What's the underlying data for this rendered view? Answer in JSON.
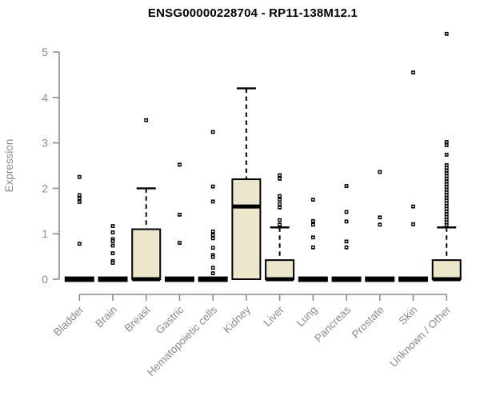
{
  "figure": {
    "title": "ENSG00000228704 - RP11-138M12.1"
  },
  "chart_data": {
    "type": "boxplot",
    "title": "ENSG00000228704 - RP11-138M12.1",
    "xlabel": "",
    "ylabel": "Expression",
    "ylim": [
      0,
      5
    ],
    "yticks": [
      0,
      1,
      2,
      3,
      4,
      5
    ],
    "grid": false,
    "legend": null,
    "categories": [
      "Bladder",
      "Brain",
      "Breast",
      "Gastric",
      "Hematopoietic cells",
      "Kidney",
      "Liver",
      "Lung",
      "Pancreas",
      "Prostate",
      "Skin",
      "Unknown / Other"
    ],
    "series": [
      {
        "name": "Bladder",
        "q1": 0,
        "median": 0,
        "q3": 0,
        "whisker_low": 0,
        "whisker_high": 0,
        "outliers": [
          2.25,
          1.85,
          1.78,
          1.7,
          0.78
        ]
      },
      {
        "name": "Brain",
        "q1": 0,
        "median": 0,
        "q3": 0,
        "whisker_low": 0,
        "whisker_high": 0,
        "outliers": [
          1.17,
          1.03,
          0.88,
          0.84,
          0.74,
          0.57,
          0.4,
          0.36
        ]
      },
      {
        "name": "Breast",
        "q1": 0,
        "median": 0,
        "q3": 1.1,
        "whisker_low": 0,
        "whisker_high": 2.0,
        "outliers": [
          3.5
        ]
      },
      {
        "name": "Gastric",
        "q1": 0,
        "median": 0,
        "q3": 0,
        "whisker_low": 0,
        "whisker_high": 0,
        "outliers": [
          2.52,
          1.42,
          0.8
        ]
      },
      {
        "name": "Hematopoietic cells",
        "q1": 0,
        "median": 0,
        "q3": 0,
        "whisker_low": 0,
        "whisker_high": 0,
        "outliers": [
          3.24,
          2.04,
          1.71,
          1.05,
          0.97,
          0.9,
          0.69,
          0.53,
          0.49,
          0.25,
          0.13
        ]
      },
      {
        "name": "Kidney",
        "q1": 0,
        "median": 1.6,
        "q3": 2.2,
        "whisker_low": 0,
        "whisker_high": 4.2,
        "outliers": []
      },
      {
        "name": "Liver",
        "q1": 0,
        "median": 0,
        "q3": 0.42,
        "whisker_low": 0,
        "whisker_high": 1.14,
        "outliers": [
          2.29,
          2.21,
          1.83,
          1.75,
          1.65,
          1.58,
          1.3,
          1.2
        ]
      },
      {
        "name": "Lung",
        "q1": 0,
        "median": 0,
        "q3": 0,
        "whisker_low": 0,
        "whisker_high": 0,
        "outliers": [
          1.75,
          1.28,
          1.2,
          0.92,
          0.7
        ]
      },
      {
        "name": "Pancreas",
        "q1": 0,
        "median": 0,
        "q3": 0,
        "whisker_low": 0,
        "whisker_high": 0,
        "outliers": [
          2.05,
          1.48,
          1.27,
          0.83,
          0.7
        ]
      },
      {
        "name": "Prostate",
        "q1": 0,
        "median": 0,
        "q3": 0,
        "whisker_low": 0,
        "whisker_high": 0,
        "outliers": [
          2.36,
          1.36,
          1.2
        ]
      },
      {
        "name": "Skin",
        "q1": 0,
        "median": 0,
        "q3": 0,
        "whisker_low": 0,
        "whisker_high": 0,
        "outliers": [
          4.55,
          1.6,
          1.21
        ]
      },
      {
        "name": "Unknown / Other",
        "q1": 0,
        "median": 0,
        "q3": 0.42,
        "whisker_low": 0,
        "whisker_high": 1.14,
        "outliers": [
          5.4,
          3.02,
          2.95,
          2.74,
          2.51,
          2.45,
          2.39,
          2.33,
          2.27,
          2.21,
          2.15,
          2.09,
          2.03,
          1.97,
          1.91,
          1.85,
          1.79,
          1.73,
          1.67,
          1.61,
          1.55,
          1.49,
          1.43,
          1.37,
          1.31,
          1.25,
          1.19
        ]
      }
    ],
    "colors": {
      "box_fill": "#ece6cc",
      "box_border": "#000000",
      "median": "#000000",
      "whisker": "#000000",
      "outlier": "#000000",
      "axis": "#8c8c8c",
      "tick_label": "#8c8c8c",
      "title": "#000000",
      "background": "#ffffff"
    }
  }
}
